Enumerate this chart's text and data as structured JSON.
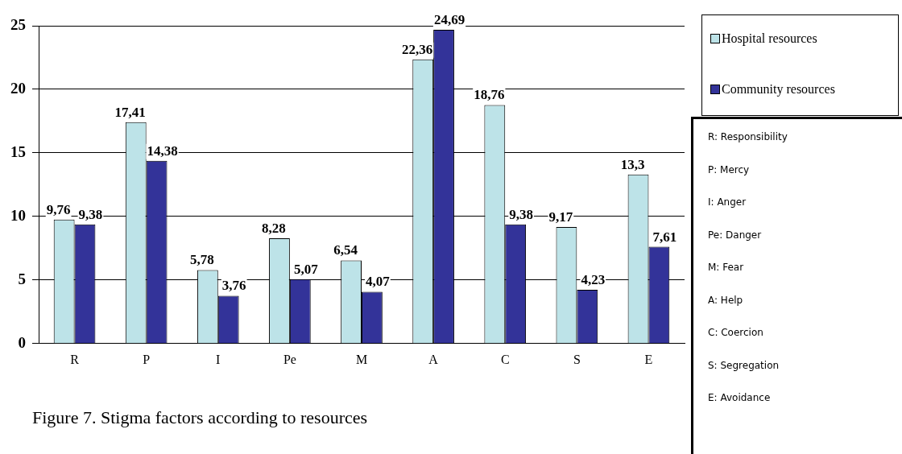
{
  "chart_data": {
    "type": "bar",
    "title": "Figure 7. Stigma factors according to resources",
    "categories": [
      "R",
      "P",
      "I",
      "Pe",
      "M",
      "A",
      "C",
      "S",
      "E"
    ],
    "series": [
      {
        "name": "Hospital resources",
        "color": "#bde3e8",
        "values": [
          9.76,
          17.41,
          5.78,
          8.28,
          6.54,
          22.36,
          18.76,
          9.17,
          13.3
        ],
        "value_labels": [
          "9,76",
          "17,41",
          "5,78",
          "8,28",
          "6,54",
          "22,36",
          "18,76",
          "9,17",
          "13,3"
        ]
      },
      {
        "name": "Community resources",
        "color": "#333399",
        "values": [
          9.38,
          14.38,
          3.76,
          5.07,
          4.07,
          24.69,
          9.38,
          4.23,
          7.61
        ],
        "value_labels": [
          "9,38",
          "14,38",
          "3,76",
          "5,07",
          "4,07",
          "24,69",
          "9,38",
          "4,23",
          "7,61"
        ]
      }
    ],
    "ylim": [
      0,
      25
    ],
    "yticks": [
      0,
      5,
      10,
      15,
      20,
      25
    ],
    "grid": "y",
    "legend": "top right",
    "annotations": [
      "R: Responsibility",
      "P: Mercy",
      "I: Anger",
      "Pe: Danger",
      "M: Fear",
      "A: Help",
      "C: Coercion",
      "S: Segregation",
      "E: Avoidance"
    ]
  }
}
